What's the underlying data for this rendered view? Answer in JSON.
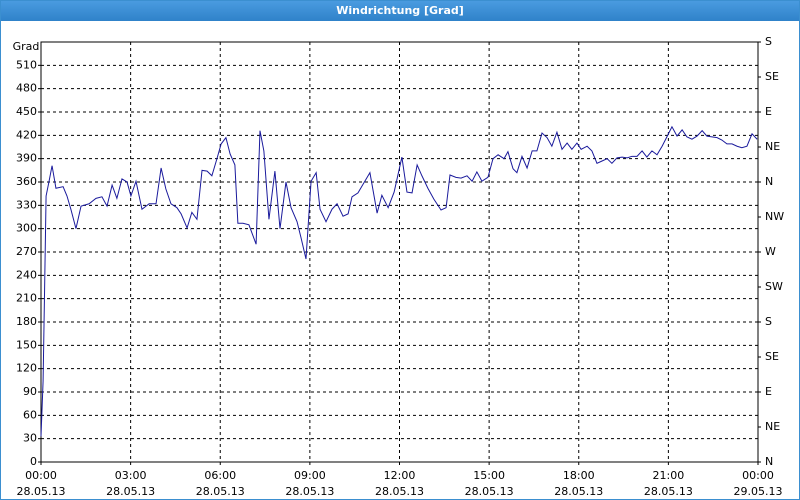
{
  "window_title": "Windrichtung [Grad]",
  "chart_data": {
    "type": "line",
    "y_label": "Grad",
    "x": [
      0,
      0.07,
      0.13,
      0.17,
      0.27,
      0.37,
      0.5,
      0.74,
      0.87,
      1.0,
      1.17,
      1.34,
      1.61,
      1.84,
      2.04,
      2.21,
      2.38,
      2.54,
      2.71,
      2.88,
      3.01,
      3.18,
      3.38,
      3.62,
      3.85,
      4.02,
      4.18,
      4.35,
      4.55,
      4.69,
      4.89,
      5.05,
      5.22,
      5.39,
      5.56,
      5.72,
      5.89,
      6.03,
      6.19,
      6.33,
      6.49,
      6.59,
      6.76,
      6.96,
      7.2,
      7.33,
      7.46,
      7.63,
      7.83,
      8.0,
      8.2,
      8.37,
      8.57,
      8.7,
      8.87,
      9.04,
      9.21,
      9.34,
      9.54,
      9.74,
      9.91,
      10.11,
      10.28,
      10.41,
      10.61,
      10.81,
      11.01,
      11.25,
      11.41,
      11.62,
      11.82,
      12.08,
      12.25,
      12.42,
      12.59,
      12.75,
      12.95,
      13.15,
      13.39,
      13.56,
      13.69,
      13.89,
      14.06,
      14.26,
      14.43,
      14.59,
      14.76,
      14.96,
      15.13,
      15.3,
      15.5,
      15.63,
      15.8,
      15.93,
      16.1,
      16.27,
      16.44,
      16.6,
      16.77,
      16.94,
      17.1,
      17.27,
      17.44,
      17.61,
      17.77,
      17.94,
      18.08,
      18.28,
      18.44,
      18.61,
      18.78,
      18.95,
      19.11,
      19.28,
      19.45,
      19.62,
      19.78,
      19.95,
      20.12,
      20.28,
      20.45,
      20.62,
      20.79,
      20.95,
      21.12,
      21.29,
      21.46,
      21.62,
      21.79,
      21.96,
      22.13,
      22.29,
      22.46,
      22.63,
      22.79,
      22.96,
      23.13,
      23.3,
      23.46,
      23.63,
      23.8,
      23.97
    ],
    "series": [
      {
        "color": "#1a1a9c",
        "values": [
          33,
          104,
          245,
          342,
          361,
          381,
          352,
          354,
          342,
          325,
          300,
          329,
          332,
          339,
          341,
          329,
          356,
          339,
          364,
          360,
          342,
          361,
          325,
          332,
          332,
          378,
          351,
          332,
          327,
          319,
          301,
          321,
          312,
          375,
          374,
          368,
          390,
          409,
          417,
          396,
          382,
          307,
          307,
          305,
          280,
          426,
          400,
          312,
          374,
          300,
          360,
          327,
          309,
          289,
          261,
          361,
          372,
          325,
          309,
          325,
          332,
          316,
          319,
          341,
          346,
          359,
          372,
          320,
          343,
          327,
          347,
          392,
          347,
          346,
          382,
          368,
          352,
          338,
          324,
          327,
          369,
          366,
          365,
          368,
          361,
          373,
          361,
          366,
          390,
          395,
          390,
          399,
          377,
          372,
          393,
          378,
          400,
          400,
          423,
          417,
          406,
          424,
          402,
          410,
          402,
          410,
          402,
          406,
          400,
          384,
          387,
          390,
          384,
          391,
          392,
          391,
          393,
          393,
          400,
          392,
          400,
          395,
          406,
          418,
          431,
          419,
          427,
          418,
          415,
          419,
          426,
          419,
          418,
          417,
          414,
          409,
          409,
          406,
          404,
          406,
          422,
          415
        ]
      }
    ],
    "xlim": [
      0,
      24
    ],
    "xticks": [
      {
        "value": 0,
        "label": "00:00\n28.05.13"
      },
      {
        "value": 3,
        "label": "03:00\n28.05.13"
      },
      {
        "value": 6,
        "label": "06:00\n28.05.13"
      },
      {
        "value": 9,
        "label": "09:00\n28.05.13"
      },
      {
        "value": 12,
        "label": "12:00\n28.05.13"
      },
      {
        "value": 15,
        "label": "15:00\n28.05.13"
      },
      {
        "value": 18,
        "label": "18:00\n28.05.13"
      },
      {
        "value": 21,
        "label": "21:00\n28.05.13"
      },
      {
        "value": 24,
        "label": "00:00\n29.05.13"
      }
    ],
    "ylim": [
      0,
      540
    ],
    "yticks": [
      0,
      30,
      60,
      90,
      120,
      150,
      180,
      210,
      240,
      270,
      300,
      330,
      360,
      390,
      420,
      450,
      480,
      510
    ],
    "y2lim": [
      0,
      540
    ],
    "y2ticks": [
      {
        "value": 0,
        "label": "N"
      },
      {
        "value": 45,
        "label": "NE"
      },
      {
        "value": 90,
        "label": "E"
      },
      {
        "value": 135,
        "label": "SE"
      },
      {
        "value": 180,
        "label": "S"
      },
      {
        "value": 225,
        "label": "SW"
      },
      {
        "value": 270,
        "label": "W"
      },
      {
        "value": 315,
        "label": "NW"
      },
      {
        "value": 360,
        "label": "N"
      },
      {
        "value": 405,
        "label": "NE"
      },
      {
        "value": 450,
        "label": "E"
      },
      {
        "value": 495,
        "label": "SE"
      },
      {
        "value": 540,
        "label": "S"
      }
    ],
    "grid": true
  }
}
